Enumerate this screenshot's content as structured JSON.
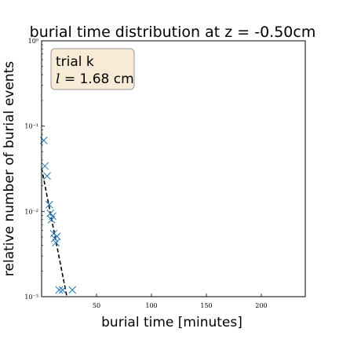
{
  "chart_data": {
    "type": "scatter",
    "title": "burial time distribution at z = -0.50cm",
    "xlabel": "burial time [minutes]",
    "ylabel": "relative number of burial events",
    "xlim": [
      0,
      240
    ],
    "ylim": [
      0.001,
      1
    ],
    "yscale": "log",
    "grid": false,
    "x_ticks": [
      50,
      100,
      150,
      200
    ],
    "x_tick_labels": [
      "50",
      "100",
      "150",
      "200"
    ],
    "y_ticks": [
      0.001,
      0.01,
      0.1,
      1
    ],
    "y_tick_labels": [
      "10⁻³",
      "10⁻²",
      "10⁻¹",
      "10⁰"
    ],
    "annotation": {
      "placement": "top-left",
      "line1": "trial k",
      "line2_symbol": "l",
      "line2_value": " = 1.68 cm"
    },
    "series": [
      {
        "marker": "x",
        "color": "#1f77b4",
        "points": [
          {
            "x": 2,
            "y": 0.068
          },
          {
            "x": 3,
            "y": 0.034
          },
          {
            "x": 5,
            "y": 0.026
          },
          {
            "x": 7,
            "y": 0.012
          },
          {
            "x": 8,
            "y": 0.0095
          },
          {
            "x": 9,
            "y": 0.008
          },
          {
            "x": 10,
            "y": 0.0088
          },
          {
            "x": 11,
            "y": 0.0055
          },
          {
            "x": 12,
            "y": 0.0048
          },
          {
            "x": 13,
            "y": 0.0043
          },
          {
            "x": 14,
            "y": 0.0051
          },
          {
            "x": 16,
            "y": 0.0012
          },
          {
            "x": 19,
            "y": 0.0012
          },
          {
            "x": 28,
            "y": 0.0012
          }
        ]
      },
      {
        "type": "line",
        "style": "dashed",
        "color": "#000000",
        "points": [
          {
            "x": 0,
            "y": 0.032
          },
          {
            "x": 23,
            "y": 0.001
          }
        ]
      }
    ]
  }
}
